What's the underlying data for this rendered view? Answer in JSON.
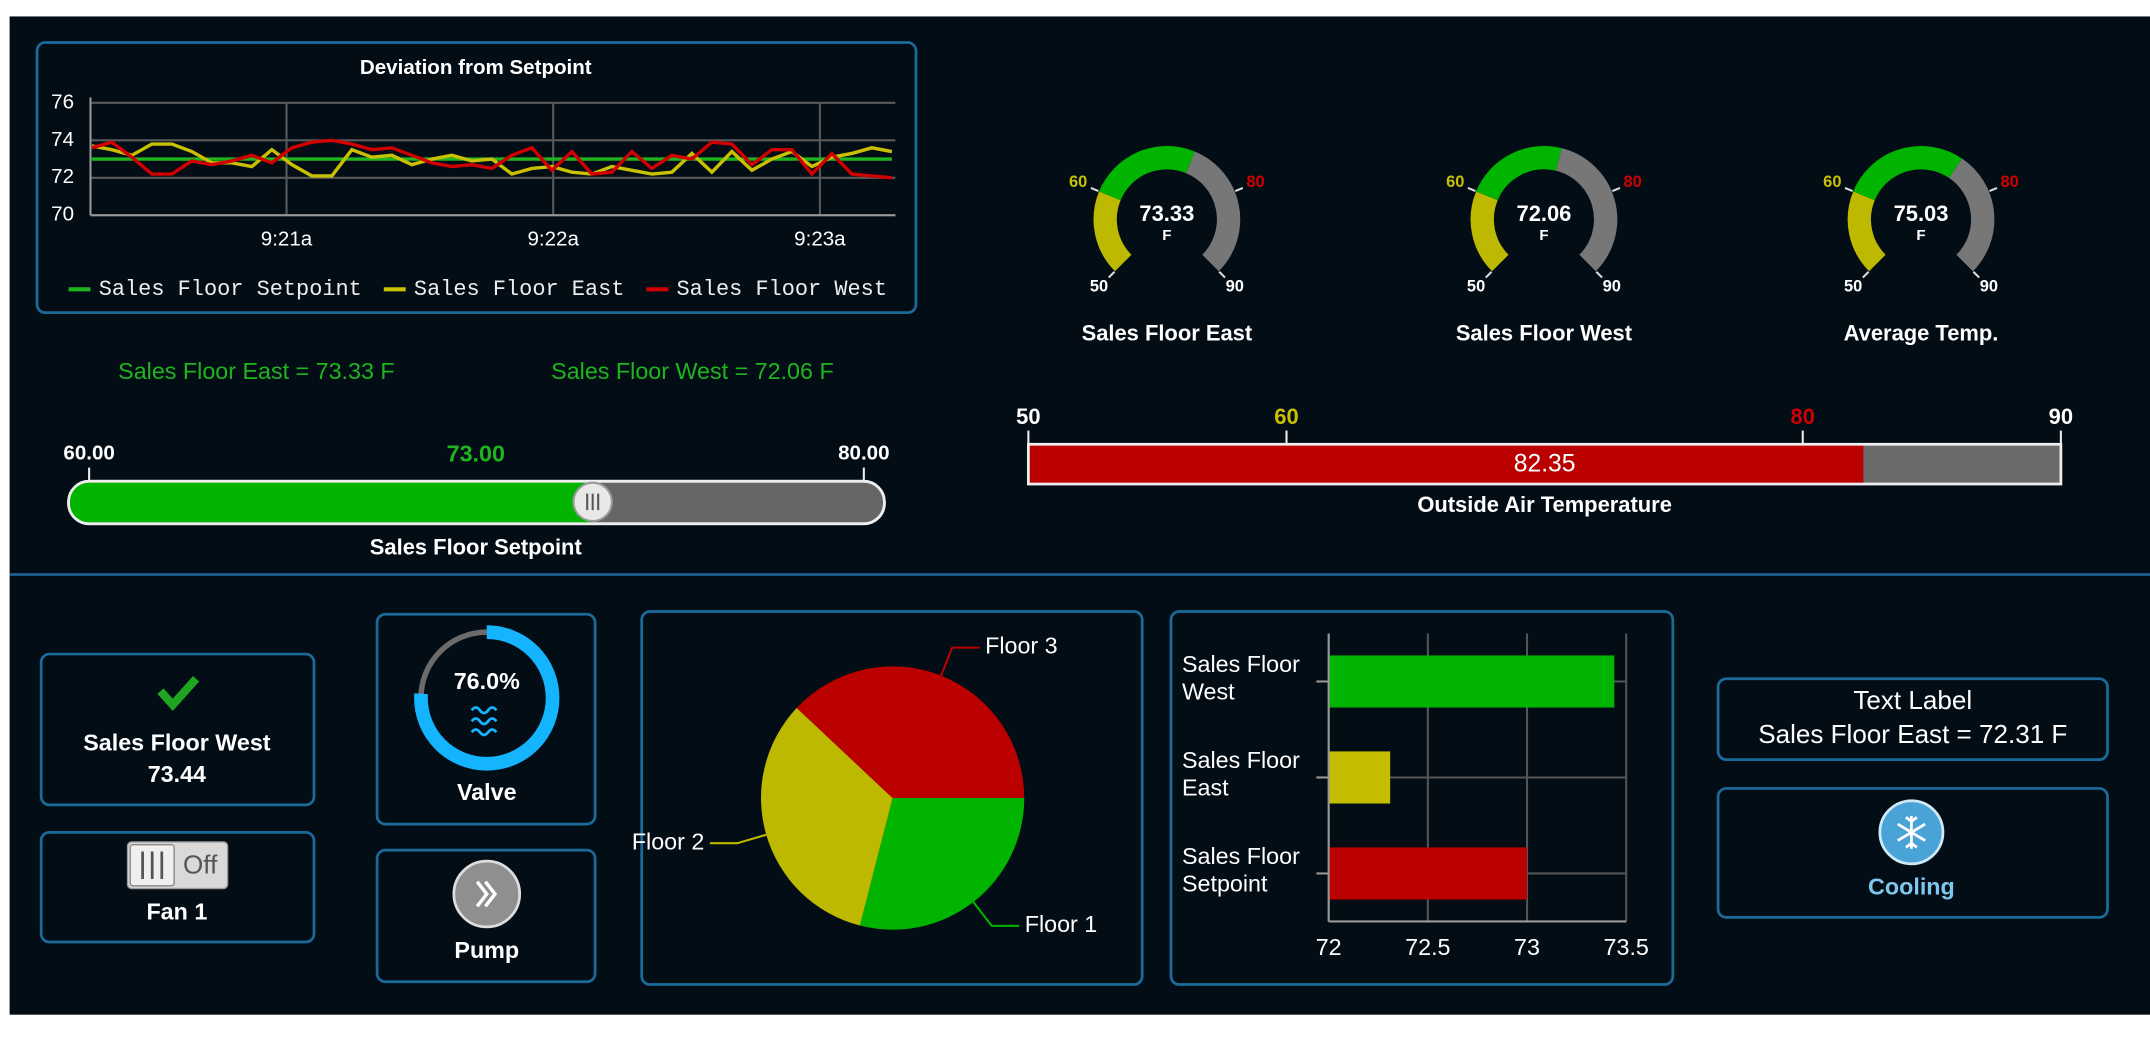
{
  "chart_data": [
    {
      "type": "line",
      "title": "Deviation from Setpoint",
      "x": [
        20.27,
        20.345,
        20.42,
        20.495,
        20.57,
        20.645,
        20.72,
        20.795,
        20.87,
        20.945,
        21.02,
        21.095,
        21.17,
        21.245,
        21.32,
        21.395,
        21.47,
        21.545,
        21.62,
        21.695,
        21.77,
        21.845,
        21.92,
        21.995,
        22.07,
        22.145,
        22.22,
        22.295,
        22.37,
        22.445,
        22.52,
        22.595,
        22.67,
        22.745,
        22.82,
        22.895,
        22.97,
        23.045,
        23.12,
        23.195,
        23.27
      ],
      "series": [
        {
          "name": "Sales Floor Setpoint",
          "color": "#1fb51f",
          "values": [
            73,
            73,
            73,
            73,
            73,
            73,
            73,
            73,
            73,
            73,
            73,
            73,
            73,
            73,
            73,
            73,
            73,
            73,
            73,
            73,
            73,
            73,
            73,
            73,
            73,
            73,
            73,
            73,
            73,
            73,
            73,
            73,
            73,
            73,
            73,
            73,
            73,
            73,
            73,
            73,
            73
          ]
        },
        {
          "name": "Sales Floor East",
          "color": "#c8c000",
          "values": [
            73.7,
            73.5,
            73.2,
            73.8,
            73.8,
            73.4,
            72.8,
            72.8,
            72.6,
            73.5,
            72.7,
            72.1,
            72.1,
            73.5,
            73.1,
            73.2,
            72.7,
            73.0,
            73.2,
            72.9,
            73.0,
            72.2,
            72.5,
            72.6,
            72.3,
            72.2,
            72.6,
            72.4,
            72.2,
            72.3,
            73.3,
            72.3,
            73.4,
            72.4,
            73.0,
            73.4,
            72.6,
            73.1,
            73.3,
            73.6,
            73.4
          ]
        },
        {
          "name": "Sales Floor West",
          "color": "#d00000",
          "values": [
            73.6,
            73.9,
            73.1,
            72.2,
            72.2,
            72.9,
            72.7,
            72.9,
            73.2,
            72.8,
            73.6,
            73.9,
            74.0,
            73.8,
            73.5,
            73.6,
            73.2,
            72.8,
            72.6,
            72.7,
            72.5,
            73.2,
            73.6,
            72.4,
            73.4,
            72.2,
            72.3,
            73.4,
            72.5,
            73.2,
            73.0,
            73.9,
            73.8,
            72.7,
            73.5,
            73.5,
            72.2,
            73.3,
            72.2,
            72.1,
            72.0
          ]
        }
      ],
      "xlim": [
        20.265,
        23.283
      ],
      "xticks": [
        {
          "value": 21,
          "label": "9:21a"
        },
        {
          "value": 22,
          "label": "9:22a"
        },
        {
          "value": 23,
          "label": "9:23a"
        }
      ],
      "ylim": [
        70,
        76
      ],
      "yticks": [
        70,
        72,
        74,
        76
      ],
      "grid": true,
      "legend": "bottom"
    },
    {
      "type": "pie",
      "categories": [
        "Floor 1",
        "Floor 2",
        "Floor 3"
      ],
      "values": [
        29,
        33,
        38
      ],
      "colors": [
        "#00b400",
        "#bdb900",
        "#bb0000"
      ]
    },
    {
      "type": "bar",
      "orientation": "horizontal",
      "categories": [
        "Sales Floor West",
        "Sales Floor East",
        "Sales Floor Setpoint"
      ],
      "values": [
        73.44,
        72.31,
        73
      ],
      "colors": [
        "#00b400",
        "#c4bd00",
        "#bb0000"
      ],
      "xlim": [
        72,
        73.5
      ],
      "xticks": [
        72,
        72.5,
        73,
        73.5
      ],
      "grid": true
    }
  ],
  "gauges": [
    {
      "label": "Sales Floor East",
      "value": 73.33,
      "unit": "F",
      "ticks": [
        50,
        60,
        80,
        90
      ]
    },
    {
      "label": "Sales Floor West",
      "value": 72.06,
      "unit": "F",
      "ticks": [
        50,
        60,
        80,
        90
      ]
    },
    {
      "label": "Average Temp.",
      "value": 75.03,
      "unit": "F",
      "ticks": [
        50,
        60,
        80,
        90
      ]
    }
  ],
  "readouts": [
    "Sales Floor East = 73.33 F",
    "Sales Floor West = 72.06 F"
  ],
  "setpoint_slider": {
    "label": "Sales Floor Setpoint",
    "value": 73,
    "value_label": "73.00",
    "ticks": [
      {
        "value": 60,
        "label": "60.00"
      },
      {
        "value": 80,
        "label": "80.00"
      }
    ]
  },
  "outside_air": {
    "label": "Outside Air Temperature",
    "value": 82.35,
    "ticks": [
      50,
      60,
      80,
      90
    ]
  },
  "status_card": {
    "title": "Sales Floor West",
    "value": 73.44
  },
  "fan": {
    "label": "Fan 1",
    "state": "Off"
  },
  "valve": {
    "label": "Valve",
    "value": 76,
    "value_label": "76.0%"
  },
  "pump": {
    "label": "Pump"
  },
  "text_card": {
    "title": "Text Label",
    "text": "Sales Floor East = 72.31 F"
  },
  "mode": {
    "label": "Cooling"
  }
}
